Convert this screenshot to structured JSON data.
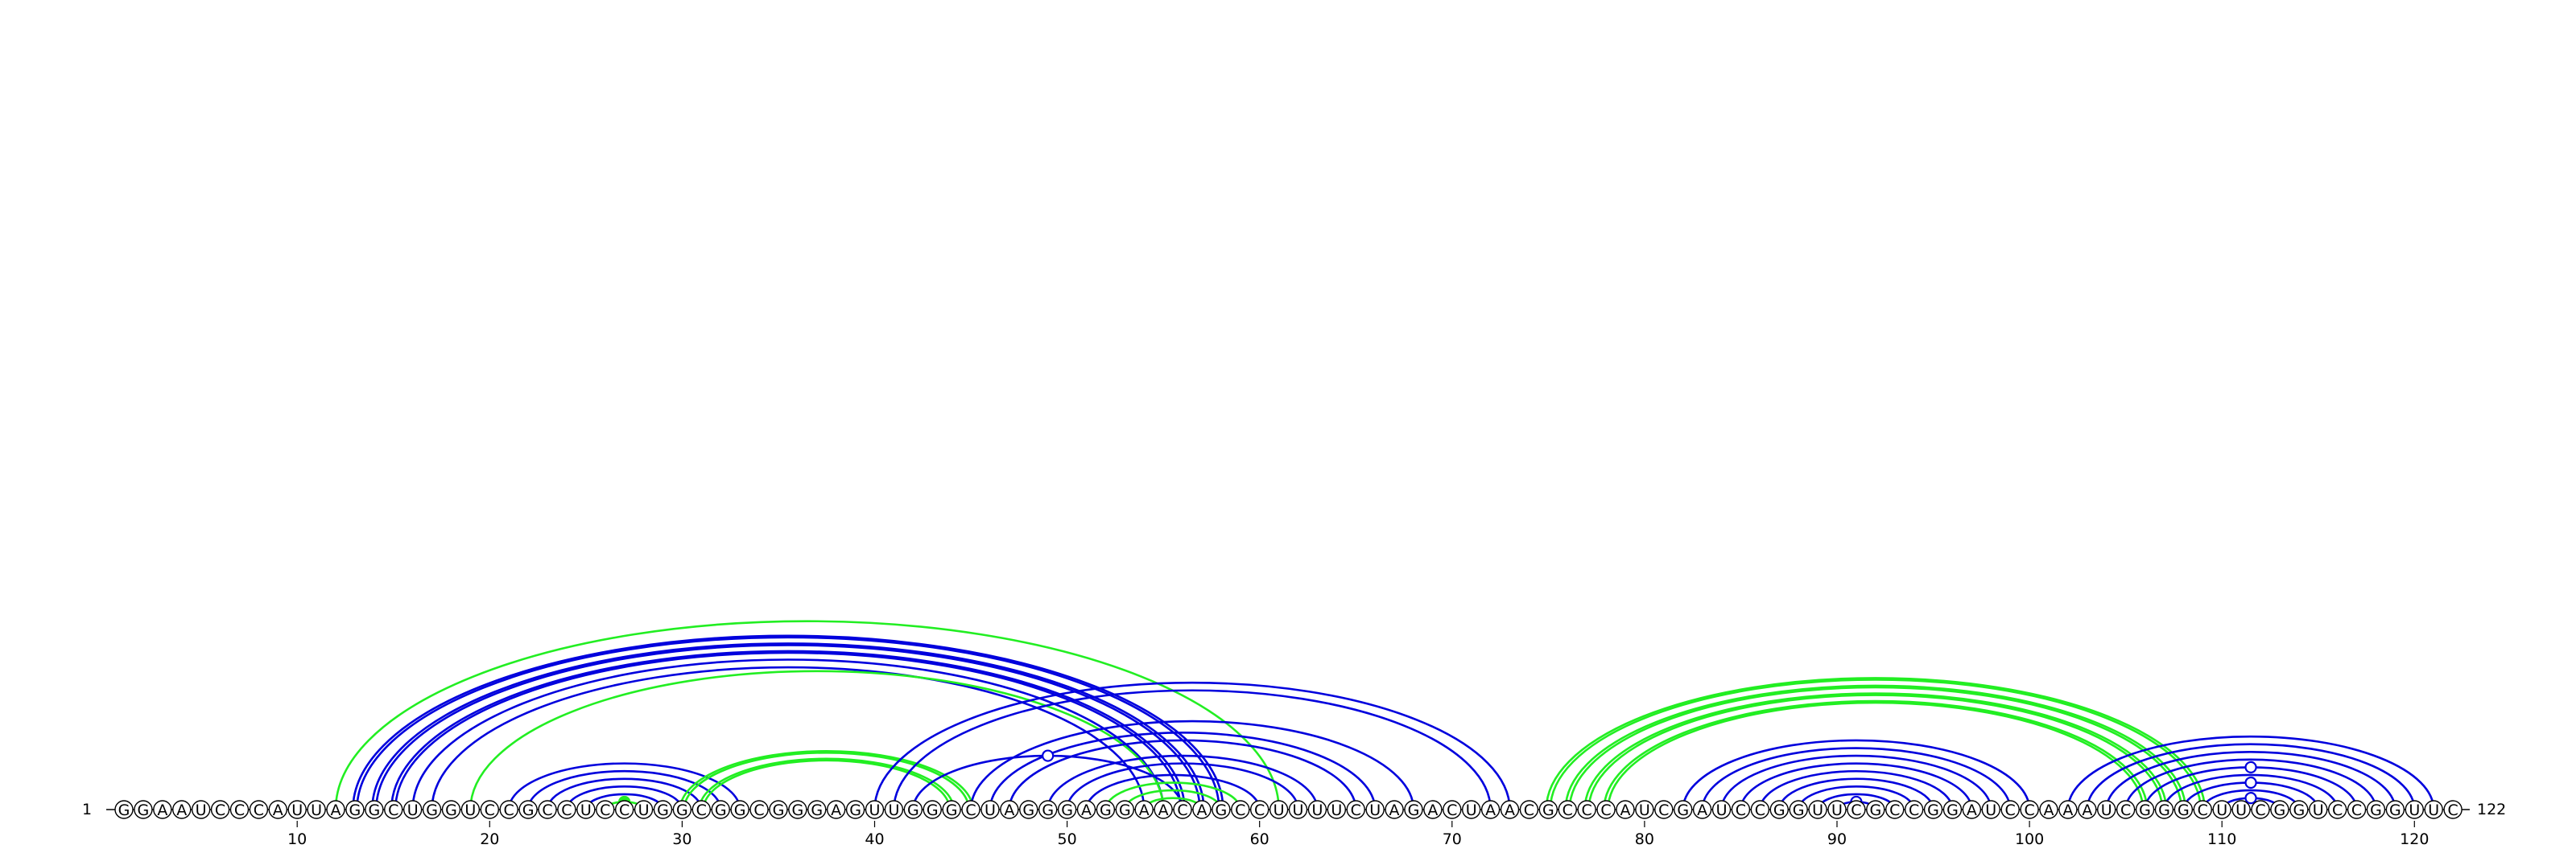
{
  "sequence": "GGAAUCCCAUUAGGCUGGUCCGCCUCCUGGCGGCGGGAGUUGGGCUAGGGAGGAACAGCCUUUUCUAGACUAACGCCCAUCGAUCCGGUUCGCCGGAUCCAAAUCGGGCUUCGGUCCGGUUC",
  "start_label": "1",
  "end_label": "122",
  "ticks": [
    10,
    20,
    30,
    40,
    50,
    60,
    70,
    80,
    90,
    100,
    110,
    120
  ],
  "colors": {
    "blue": "#0000dd",
    "green": "#22ee22"
  },
  "pairs": [
    [
      22,
      32,
      "blue",
      1
    ],
    [
      23,
      31,
      "blue",
      1
    ],
    [
      24,
      30,
      "blue",
      1
    ],
    [
      25,
      29,
      "blue",
      1
    ],
    [
      26,
      28,
      "green",
      1
    ],
    [
      21,
      33,
      "blue",
      1
    ],
    [
      13,
      58,
      "blue",
      2
    ],
    [
      14,
      57,
      "blue",
      2
    ],
    [
      15,
      56,
      "blue",
      2
    ],
    [
      16,
      55,
      "blue",
      1
    ],
    [
      17,
      54,
      "blue",
      1
    ],
    [
      12,
      61,
      "green",
      1
    ],
    [
      19,
      55,
      "green",
      1
    ],
    [
      30,
      45,
      "green",
      2
    ],
    [
      31,
      44,
      "green",
      2
    ],
    [
      40,
      73,
      "blue",
      1
    ],
    [
      41,
      72,
      "blue",
      1
    ],
    [
      42,
      56,
      "blue",
      1
    ],
    [
      45,
      68,
      "blue",
      1
    ],
    [
      46,
      66,
      "blue",
      1
    ],
    [
      47,
      65,
      "blue",
      1
    ],
    [
      49,
      63,
      "blue",
      1
    ],
    [
      50,
      62,
      "blue",
      1
    ],
    [
      51,
      60,
      "blue",
      1
    ],
    [
      52,
      59,
      "green",
      1
    ],
    [
      53,
      58,
      "green",
      1
    ],
    [
      54,
      57,
      "green",
      1
    ],
    [
      75,
      109,
      "green",
      2
    ],
    [
      76,
      108,
      "green",
      2
    ],
    [
      77,
      107,
      "green",
      2
    ],
    [
      78,
      106,
      "green",
      2
    ],
    [
      82,
      100,
      "blue",
      1
    ],
    [
      83,
      99,
      "blue",
      1
    ],
    [
      84,
      98,
      "blue",
      1
    ],
    [
      85,
      97,
      "blue",
      1
    ],
    [
      86,
      96,
      "blue",
      1
    ],
    [
      87,
      95,
      "blue",
      1
    ],
    [
      88,
      94,
      "blue",
      1
    ],
    [
      89,
      93,
      "blue",
      1
    ],
    [
      90,
      92,
      "blue",
      1
    ],
    [
      102,
      121,
      "blue",
      1
    ],
    [
      103,
      120,
      "blue",
      1
    ],
    [
      104,
      119,
      "blue",
      1
    ],
    [
      105,
      118,
      "blue",
      1
    ],
    [
      106,
      117,
      "blue",
      1
    ],
    [
      107,
      116,
      "blue",
      1
    ],
    [
      108,
      115,
      "blue",
      1
    ],
    [
      109,
      114,
      "blue",
      1
    ],
    [
      110,
      113,
      "blue",
      1
    ]
  ],
  "markers": [
    [
      26,
      28,
      "green",
      "filled"
    ],
    [
      42,
      56,
      "blue",
      "open"
    ],
    [
      90,
      92,
      "blue",
      "open"
    ],
    [
      110,
      113,
      "blue",
      "open"
    ],
    [
      106,
      117,
      "blue",
      "open"
    ],
    [
      108,
      115,
      "blue",
      "open"
    ]
  ]
}
